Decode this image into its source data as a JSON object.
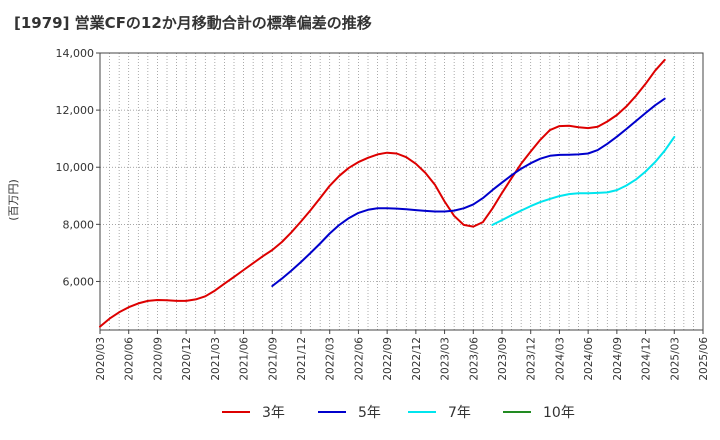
{
  "chart_data": {
    "type": "line",
    "title": "[1979]  営業CFの12か月移動合計の標準偏差の推移",
    "ylabel": "(百万円)",
    "xlabel": "",
    "ylim": [
      4300,
      14000
    ],
    "y_ticks": [
      6000,
      8000,
      10000,
      12000,
      14000
    ],
    "y_tick_labels": [
      "6,000",
      "8,000",
      "10,000",
      "12,000",
      "14,000"
    ],
    "x_ticks": [
      "2020/03",
      "2020/06",
      "2020/09",
      "2020/12",
      "2021/03",
      "2021/06",
      "2021/09",
      "2021/12",
      "2022/03",
      "2022/06",
      "2022/09",
      "2022/12",
      "2023/03",
      "2023/06",
      "2023/09",
      "2023/12",
      "2024/03",
      "2024/06",
      "2024/09",
      "2024/12",
      "2025/03",
      "2025/06"
    ],
    "grid": true,
    "legend_position": "bottom",
    "series": [
      {
        "name": "3年",
        "color": "#dd0000",
        "points": [
          [
            "2020/03",
            4420
          ],
          [
            "2020/04",
            4700
          ],
          [
            "2020/05",
            4920
          ],
          [
            "2020/06",
            5100
          ],
          [
            "2020/07",
            5230
          ],
          [
            "2020/08",
            5320
          ],
          [
            "2020/09",
            5350
          ],
          [
            "2020/10",
            5340
          ],
          [
            "2020/11",
            5320
          ],
          [
            "2020/12",
            5320
          ],
          [
            "2021/01",
            5370
          ],
          [
            "2021/02",
            5480
          ],
          [
            "2021/03",
            5680
          ],
          [
            "2021/04",
            5920
          ],
          [
            "2021/05",
            6160
          ],
          [
            "2021/06",
            6400
          ],
          [
            "2021/07",
            6640
          ],
          [
            "2021/08",
            6880
          ],
          [
            "2021/09",
            7100
          ],
          [
            "2021/10",
            7380
          ],
          [
            "2021/11",
            7720
          ],
          [
            "2021/12",
            8100
          ],
          [
            "2022/01",
            8500
          ],
          [
            "2022/02",
            8920
          ],
          [
            "2022/03",
            9350
          ],
          [
            "2022/04",
            9700
          ],
          [
            "2022/05",
            9980
          ],
          [
            "2022/06",
            10180
          ],
          [
            "2022/07",
            10330
          ],
          [
            "2022/08",
            10450
          ],
          [
            "2022/09",
            10510
          ],
          [
            "2022/10",
            10480
          ],
          [
            "2022/11",
            10350
          ],
          [
            "2022/12",
            10120
          ],
          [
            "2023/01",
            9800
          ],
          [
            "2023/02",
            9380
          ],
          [
            "2023/03",
            8800
          ],
          [
            "2023/04",
            8300
          ],
          [
            "2023/05",
            7980
          ],
          [
            "2023/06",
            7920
          ],
          [
            "2023/07",
            8080
          ],
          [
            "2023/08",
            8550
          ],
          [
            "2023/09",
            9100
          ],
          [
            "2023/10",
            9620
          ],
          [
            "2023/11",
            10120
          ],
          [
            "2023/12",
            10550
          ],
          [
            "2024/01",
            10960
          ],
          [
            "2024/02",
            11300
          ],
          [
            "2024/03",
            11440
          ],
          [
            "2024/04",
            11450
          ],
          [
            "2024/05",
            11400
          ],
          [
            "2024/06",
            11370
          ],
          [
            "2024/07",
            11420
          ],
          [
            "2024/08",
            11600
          ],
          [
            "2024/09",
            11830
          ],
          [
            "2024/10",
            12130
          ],
          [
            "2024/11",
            12500
          ],
          [
            "2024/12",
            12920
          ],
          [
            "2025/01",
            13380
          ],
          [
            "2025/02",
            13760
          ]
        ]
      },
      {
        "name": "5年",
        "color": "#0000cc",
        "points": [
          [
            "2021/09",
            5840
          ],
          [
            "2021/10",
            6100
          ],
          [
            "2021/11",
            6380
          ],
          [
            "2021/12",
            6680
          ],
          [
            "2022/01",
            7000
          ],
          [
            "2022/02",
            7330
          ],
          [
            "2022/03",
            7680
          ],
          [
            "2022/04",
            7980
          ],
          [
            "2022/05",
            8220
          ],
          [
            "2022/06",
            8400
          ],
          [
            "2022/07",
            8510
          ],
          [
            "2022/08",
            8560
          ],
          [
            "2022/09",
            8560
          ],
          [
            "2022/10",
            8550
          ],
          [
            "2022/11",
            8530
          ],
          [
            "2022/12",
            8500
          ],
          [
            "2023/01",
            8470
          ],
          [
            "2023/02",
            8450
          ],
          [
            "2023/03",
            8450
          ],
          [
            "2023/04",
            8480
          ],
          [
            "2023/05",
            8560
          ],
          [
            "2023/06",
            8700
          ],
          [
            "2023/07",
            8920
          ],
          [
            "2023/08",
            9200
          ],
          [
            "2023/09",
            9460
          ],
          [
            "2023/10",
            9720
          ],
          [
            "2023/11",
            9950
          ],
          [
            "2023/12",
            10140
          ],
          [
            "2024/01",
            10300
          ],
          [
            "2024/02",
            10400
          ],
          [
            "2024/03",
            10430
          ],
          [
            "2024/04",
            10440
          ],
          [
            "2024/05",
            10450
          ],
          [
            "2024/06",
            10480
          ],
          [
            "2024/07",
            10600
          ],
          [
            "2024/08",
            10820
          ],
          [
            "2024/09",
            11070
          ],
          [
            "2024/10",
            11340
          ],
          [
            "2024/11",
            11620
          ],
          [
            "2024/12",
            11900
          ],
          [
            "2025/01",
            12170
          ],
          [
            "2025/02",
            12400
          ]
        ]
      },
      {
        "name": "7年",
        "color": "#00e5ee",
        "points": [
          [
            "2023/08",
            7980
          ],
          [
            "2023/09",
            8150
          ],
          [
            "2023/10",
            8320
          ],
          [
            "2023/11",
            8480
          ],
          [
            "2023/12",
            8640
          ],
          [
            "2024/01",
            8780
          ],
          [
            "2024/02",
            8890
          ],
          [
            "2024/03",
            8990
          ],
          [
            "2024/04",
            9060
          ],
          [
            "2024/05",
            9090
          ],
          [
            "2024/06",
            9090
          ],
          [
            "2024/07",
            9100
          ],
          [
            "2024/08",
            9120
          ],
          [
            "2024/09",
            9200
          ],
          [
            "2024/10",
            9360
          ],
          [
            "2024/11",
            9570
          ],
          [
            "2024/12",
            9850
          ],
          [
            "2025/01",
            10180
          ],
          [
            "2025/02",
            10580
          ],
          [
            "2025/03",
            11060
          ]
        ]
      },
      {
        "name": "10年",
        "color": "#228b22",
        "points": []
      }
    ]
  }
}
